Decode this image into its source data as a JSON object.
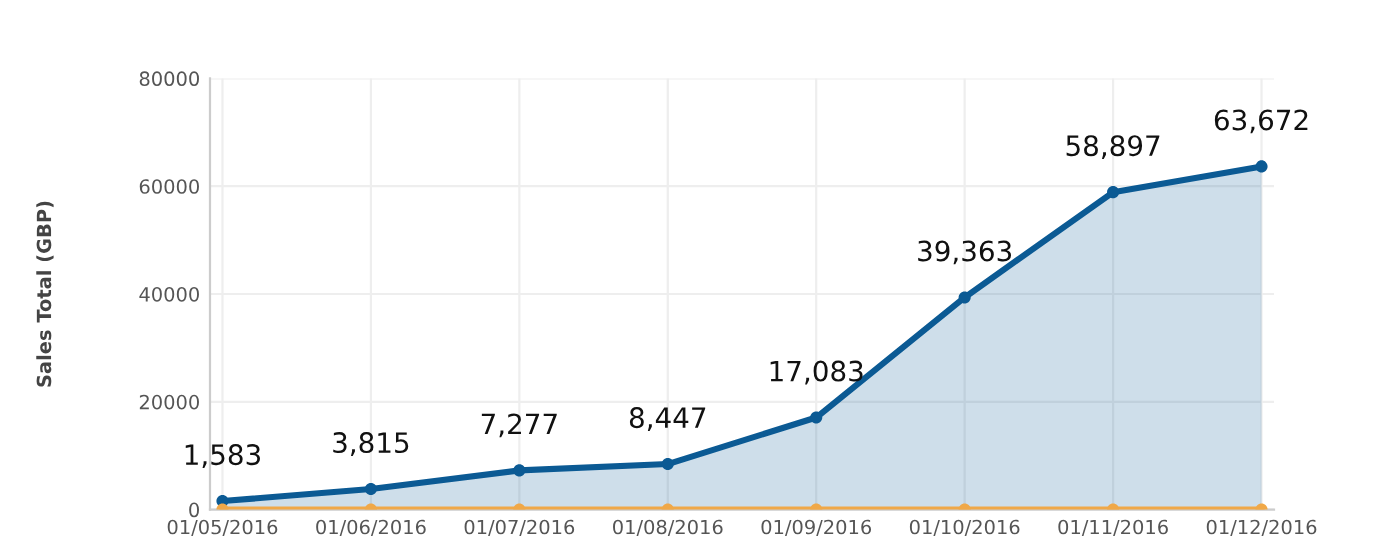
{
  "chart_data": {
    "type": "area",
    "ylabel": "Sales Total (GBP)",
    "categories": [
      "01/05/2016",
      "01/06/2016",
      "01/07/2016",
      "01/08/2016",
      "01/09/2016",
      "01/10/2016",
      "01/11/2016",
      "01/12/2016"
    ],
    "series": [
      {
        "color": "#0b5a94",
        "values": [
          1583,
          3815,
          7277,
          8447,
          17083,
          39363,
          58897,
          63672
        ],
        "value_labels": [
          "1,583",
          "3,815",
          "7,277",
          "8,447",
          "17,083",
          "39,363",
          "58,897",
          "63,672"
        ]
      },
      {
        "type": "line",
        "color": "#f0a848",
        "values": [
          0,
          0,
          0,
          0,
          0,
          0,
          0,
          0
        ]
      }
    ],
    "ylim": [
      0,
      80000
    ],
    "yticks": [
      0,
      20000,
      40000,
      60000,
      80000
    ],
    "grid": true,
    "marker": "circle"
  }
}
